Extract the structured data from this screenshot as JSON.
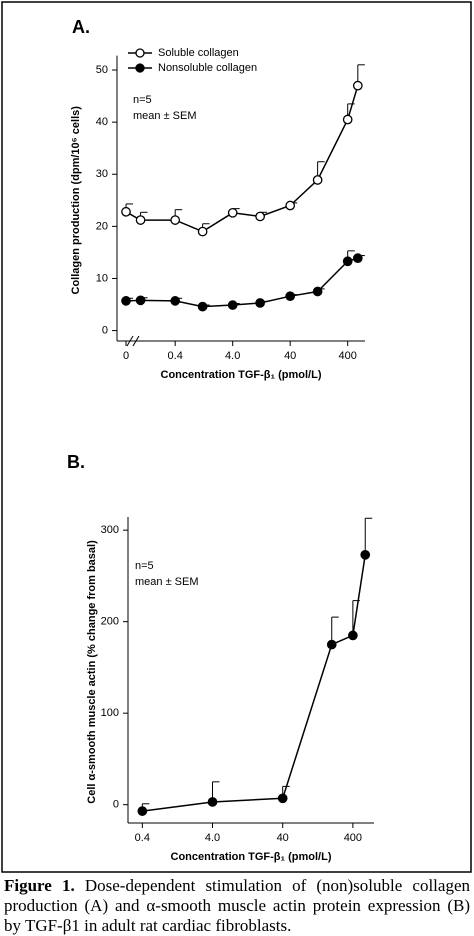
{
  "chart_data": [
    {
      "type": "line",
      "panel": "A.",
      "x_label": "Concentration TGF-β₁ (pmol/L)",
      "y_label": "Collagen production (dpm/10⁶ cells)",
      "annotations": [
        "n=5",
        "mean ± SEM"
      ],
      "x": [
        0,
        0.1,
        0.4,
        1.2,
        4,
        12,
        40,
        120,
        400,
        600
      ],
      "xscale": "log",
      "xlim": [
        0.08,
        800
      ],
      "xticks": [
        0,
        {
          "value": 0.4,
          "label": "0.4"
        },
        {
          "value": 4,
          "label": "4.0"
        },
        40,
        400
      ],
      "ylim": [
        -2,
        52
      ],
      "yticks": [
        0,
        10,
        20,
        30,
        40,
        50
      ],
      "legend": "top-left",
      "series": [
        {
          "name": "Soluble collagen",
          "color": "#000000",
          "marker_fill": "#ffffff",
          "values": [
            22.8,
            21.2,
            21.2,
            19.0,
            22.6,
            21.9,
            24.0,
            28.9,
            40.5,
            47.0
          ],
          "errors": [
            1.5,
            1.5,
            2.0,
            1.5,
            0.8,
            0.8,
            0.5,
            3.5,
            3.0,
            4.0
          ]
        },
        {
          "name": "Nonsoluble collagen",
          "color": "#000000",
          "marker_fill": "#000000",
          "values": [
            5.7,
            5.8,
            5.7,
            4.6,
            4.9,
            5.3,
            6.6,
            7.5,
            13.3,
            13.9
          ],
          "errors": [
            0.5,
            0.5,
            0.5,
            0.3,
            0.3,
            0.3,
            0.3,
            0.5,
            2.0,
            0.5
          ]
        }
      ]
    },
    {
      "type": "line",
      "panel": "B.",
      "x_label": "Concentration TGF-β₁ (pmol/L)",
      "y_label": "Cell α-smooth muscle actin (% change from basal)",
      "annotations": [
        "n=5",
        "mean ± SEM"
      ],
      "x": [
        0.4,
        4,
        40,
        200,
        400,
        600
      ],
      "xscale": "log",
      "xlim": [
        0.25,
        800
      ],
      "xticks": [
        {
          "value": 0.4,
          "label": "0.4"
        },
        {
          "value": 4,
          "label": "4.0"
        },
        40,
        400
      ],
      "ylim": [
        -20,
        310
      ],
      "yticks": [
        0,
        100,
        200,
        300
      ],
      "series": [
        {
          "color": "#000000",
          "marker_fill": "#000000",
          "values": [
            -7,
            3,
            7,
            175,
            185,
            273
          ],
          "errors": [
            8,
            22,
            13,
            30,
            38,
            40
          ]
        }
      ]
    }
  ],
  "caption": {
    "label": "Figure 1.",
    "text": "Dose-dependent stimulation of (non)soluble collagen production (A) and α-smooth muscle actin protein expression (B) by TGF-β1 in adult rat cardiac fibroblasts."
  }
}
